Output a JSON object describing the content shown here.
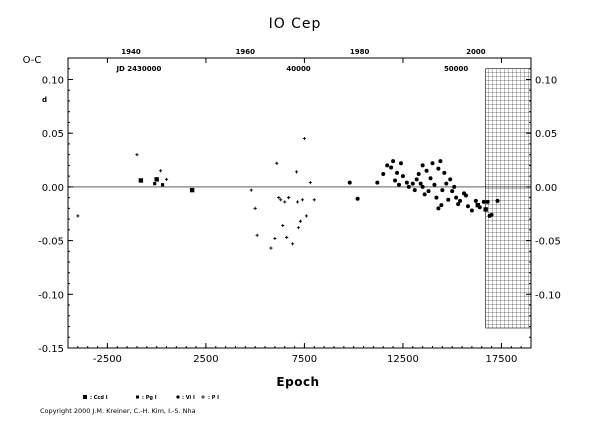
{
  "chart_data": {
    "type": "scatter",
    "title": "IO Cep",
    "ylabel": "O-C",
    "xlabel": "Epoch",
    "xlim": [
      -4500,
      19000
    ],
    "ylim": [
      -0.15,
      0.12
    ],
    "x_ticks": [
      -2500,
      2500,
      7500,
      12500,
      17500
    ],
    "y_ticks": [
      -0.15,
      -0.1,
      -0.05,
      0.0,
      0.05,
      0.1
    ],
    "y_tick_labels_left": [
      "-0.15",
      "-0.10",
      "-0.05",
      "0.00",
      "0.05",
      "0.10"
    ],
    "y_tick_labels_right": [
      "-0.10",
      "-0.05",
      "0.00",
      "0.05",
      "0.10"
    ],
    "y_tick_labels_right_values": [
      -0.1,
      -0.05,
      0.0,
      0.05,
      0.1
    ],
    "y_unit_mark": "d",
    "top_axis_years": [
      {
        "label": "1940",
        "epoch": -1300
      },
      {
        "label": "1960",
        "epoch": 4500
      },
      {
        "label": "1980",
        "epoch": 10300
      },
      {
        "label": "2000",
        "epoch": 16200
      }
    ],
    "jd_labels": [
      {
        "label": "JD 2430000",
        "epoch": -900
      },
      {
        "label": "40000",
        "epoch": 7200
      },
      {
        "label": "50000",
        "epoch": 15200
      }
    ],
    "hatched_region": [
      16700,
      19000
    ],
    "series": [
      {
        "name": ": Ccd I",
        "marker": "square",
        "points": [
          [
            -800,
            0.006
          ],
          [
            0,
            0.007
          ],
          [
            1800,
            -0.003
          ],
          [
            16300,
            -0.017
          ],
          [
            16700,
            -0.021
          ]
        ]
      },
      {
        "name": ": Pg I",
        "marker": "smallsquare",
        "points": [
          [
            -100,
            0.003
          ],
          [
            300,
            0.002
          ]
        ]
      },
      {
        "name": ": Vi I",
        "marker": "dot",
        "points": [
          [
            9800,
            0.004
          ],
          [
            10200,
            -0.011
          ],
          [
            11200,
            0.004
          ],
          [
            11500,
            0.012
          ],
          [
            11700,
            0.02
          ],
          [
            11900,
            0.018
          ],
          [
            12000,
            0.024
          ],
          [
            12100,
            0.006
          ],
          [
            12200,
            0.013
          ],
          [
            12300,
            0.002
          ],
          [
            12400,
            0.022
          ],
          [
            12500,
            0.01
          ],
          [
            12700,
            0.004
          ],
          [
            12800,
            0.0
          ],
          [
            13000,
            0.003
          ],
          [
            13100,
            -0.003
          ],
          [
            13200,
            0.007
          ],
          [
            13300,
            0.012
          ],
          [
            13400,
            0.003
          ],
          [
            13500,
            0.02
          ],
          [
            13600,
            -0.007
          ],
          [
            13700,
            0.015
          ],
          [
            13800,
            -0.004
          ],
          [
            13900,
            0.008
          ],
          [
            14000,
            0.022
          ],
          [
            14100,
            0.002
          ],
          [
            14200,
            -0.01
          ],
          [
            14300,
            0.017
          ],
          [
            14400,
            0.024
          ],
          [
            14450,
            -0.017
          ],
          [
            14500,
            -0.003
          ],
          [
            14600,
            0.013
          ],
          [
            14700,
            0.003
          ],
          [
            14800,
            -0.012
          ],
          [
            14900,
            0.007
          ],
          [
            15000,
            -0.004
          ],
          [
            15100,
            0.0
          ],
          [
            15200,
            -0.01
          ],
          [
            15300,
            -0.016
          ],
          [
            15400,
            -0.013
          ],
          [
            15600,
            -0.006
          ],
          [
            15800,
            -0.018
          ],
          [
            16000,
            -0.022
          ],
          [
            16200,
            -0.013
          ],
          [
            16400,
            -0.019
          ],
          [
            16600,
            -0.014
          ],
          [
            16800,
            -0.014
          ],
          [
            16900,
            -0.027
          ],
          [
            17000,
            -0.026
          ],
          [
            17300,
            -0.013
          ],
          [
            14300,
            -0.02
          ],
          [
            13500,
            0.0
          ],
          [
            15700,
            -0.008
          ]
        ]
      },
      {
        "name": ": P I",
        "marker": "plus",
        "points": [
          [
            -4000,
            -0.027
          ],
          [
            -1000,
            0.03
          ],
          [
            200,
            0.015
          ],
          [
            500,
            0.007
          ],
          [
            4800,
            -0.003
          ],
          [
            5000,
            -0.02
          ],
          [
            5100,
            -0.045
          ],
          [
            5800,
            -0.057
          ],
          [
            6000,
            -0.048
          ],
          [
            6100,
            0.022
          ],
          [
            6200,
            -0.01
          ],
          [
            6300,
            -0.012
          ],
          [
            6400,
            -0.036
          ],
          [
            6500,
            -0.014
          ],
          [
            6600,
            -0.047
          ],
          [
            6700,
            -0.01
          ],
          [
            6900,
            -0.053
          ],
          [
            7100,
            0.014
          ],
          [
            7200,
            -0.038
          ],
          [
            7300,
            -0.032
          ],
          [
            7400,
            -0.012
          ],
          [
            7500,
            0.045
          ],
          [
            7600,
            -0.027
          ],
          [
            7800,
            0.004
          ],
          [
            8000,
            -0.012
          ],
          [
            7150,
            -0.014
          ]
        ]
      }
    ],
    "copyright": "Copyright 2000 J.M. Kreiner, C.-H. Kim, I.-S. Nha"
  }
}
